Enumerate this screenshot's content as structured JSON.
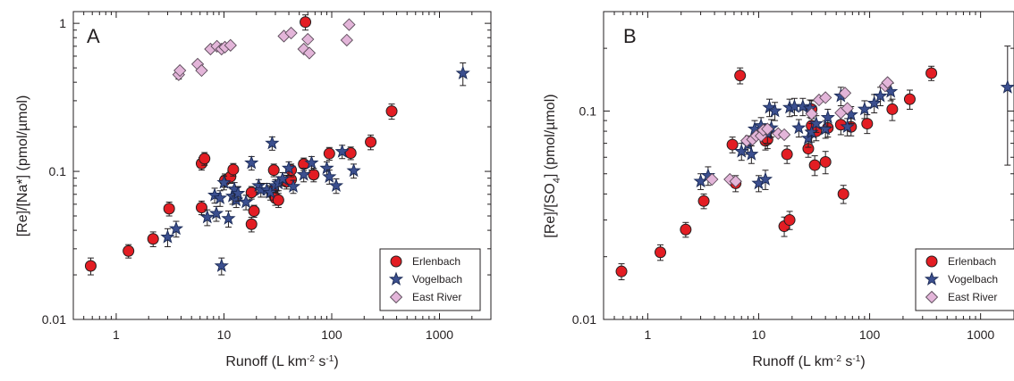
{
  "chart_data": [
    {
      "panel": "A",
      "type": "scatter",
      "xscale": "log",
      "yscale": "log",
      "xlim": [
        0.4,
        3000
      ],
      "ylim": [
        0.01,
        1.2
      ],
      "xlabel_parts": [
        "Runoff (L km",
        "-2",
        " s",
        "-1",
        ")"
      ],
      "ylabel_parts": [
        "[Re]/[Na*]  (pmol/µmol)"
      ],
      "xticks": [
        {
          "v": 1,
          "label": "1"
        },
        {
          "v": 10,
          "label": "10"
        },
        {
          "v": 100,
          "label": "100"
        },
        {
          "v": 1000,
          "label": "1000"
        }
      ],
      "yticks": [
        {
          "v": 0.01,
          "label": "0.01"
        },
        {
          "v": 0.1,
          "label": "0.1"
        },
        {
          "v": 1,
          "label": "1"
        }
      ],
      "legend": {
        "position": "bottom-right",
        "entries": [
          "Erlenbach",
          "Vogelbach",
          "East River"
        ]
      },
      "series": [
        {
          "name": "Erlenbach",
          "marker": "circle",
          "color": "#e31d23",
          "points": [
            [
              0.58,
              0.023
            ],
            [
              1.3,
              0.029
            ],
            [
              2.2,
              0.035
            ],
            [
              3.1,
              0.056
            ],
            [
              6.2,
              0.057
            ],
            [
              6.2,
              0.113
            ],
            [
              6.6,
              0.122
            ],
            [
              10.2,
              0.087
            ],
            [
              11.5,
              0.092
            ],
            [
              12.2,
              0.103
            ],
            [
              18.0,
              0.044
            ],
            [
              18.0,
              0.072
            ],
            [
              19.0,
              0.054
            ],
            [
              28.0,
              0.073
            ],
            [
              29.0,
              0.102
            ],
            [
              30.0,
              0.066
            ],
            [
              32.0,
              0.064
            ],
            [
              38.0,
              0.085
            ],
            [
              42.0,
              0.088
            ],
            [
              42.0,
              0.102
            ],
            [
              55.0,
              0.112
            ],
            [
              57.0,
              1.02
            ],
            [
              68.0,
              0.095
            ],
            [
              95.0,
              0.132
            ],
            [
              150.0,
              0.133
            ],
            [
              230.0,
              0.158
            ],
            [
              360.0,
              0.255
            ]
          ],
          "errors": [
            0.003,
            0.003,
            0.004,
            0.006,
            0.006,
            0.011,
            0.012,
            0.009,
            0.009,
            0.01,
            0.005,
            0.007,
            0.005,
            0.007,
            0.01,
            0.007,
            0.007,
            0.009,
            0.009,
            0.01,
            0.011,
            0.12,
            0.01,
            0.013,
            0.013,
            0.018,
            0.03
          ]
        },
        {
          "name": "Vogelbach",
          "marker": "star",
          "color": "#3b4f8f",
          "points": [
            [
              3.0,
              0.036
            ],
            [
              3.6,
              0.041
            ],
            [
              7.0,
              0.049
            ],
            [
              8.2,
              0.069
            ],
            [
              8.5,
              0.052
            ],
            [
              9.2,
              0.066
            ],
            [
              9.5,
              0.023
            ],
            [
              10.0,
              0.084
            ],
            [
              11.0,
              0.048
            ],
            [
              12.0,
              0.068
            ],
            [
              12.5,
              0.076
            ],
            [
              13.0,
              0.064
            ],
            [
              13.5,
              0.071
            ],
            [
              16.0,
              0.062
            ],
            [
              18.0,
              0.114
            ],
            [
              21.0,
              0.08
            ],
            [
              22.0,
              0.075
            ],
            [
              25.0,
              0.075
            ],
            [
              27.0,
              0.072
            ],
            [
              28.0,
              0.155
            ],
            [
              30.0,
              0.08
            ],
            [
              32.0,
              0.083
            ],
            [
              35.0,
              0.089
            ],
            [
              40.0,
              0.105
            ],
            [
              44.0,
              0.079
            ],
            [
              55.0,
              0.095
            ],
            [
              65.0,
              0.114
            ],
            [
              90.0,
              0.105
            ],
            [
              95.0,
              0.092
            ],
            [
              110.0,
              0.08
            ],
            [
              125.0,
              0.136
            ],
            [
              160.0,
              0.101
            ],
            [
              1650.0,
              0.46
            ]
          ],
          "errors": [
            0.005,
            0.005,
            0.006,
            0.008,
            0.006,
            0.008,
            0.003,
            0.009,
            0.006,
            0.008,
            0.008,
            0.007,
            0.008,
            0.007,
            0.012,
            0.008,
            0.008,
            0.008,
            0.008,
            0.016,
            0.008,
            0.009,
            0.009,
            0.011,
            0.008,
            0.01,
            0.012,
            0.011,
            0.01,
            0.009,
            0.014,
            0.011,
            0.08
          ]
        },
        {
          "name": "East River",
          "marker": "diamond",
          "color": "#e3b5d9",
          "points": [
            [
              3.8,
              0.45
            ],
            [
              3.9,
              0.48
            ],
            [
              5.7,
              0.53
            ],
            [
              6.2,
              0.48
            ],
            [
              7.5,
              0.67
            ],
            [
              8.6,
              0.7
            ],
            [
              9.5,
              0.67
            ],
            [
              10.2,
              0.69
            ],
            [
              11.5,
              0.71
            ],
            [
              36.0,
              0.82
            ],
            [
              42.0,
              0.86
            ],
            [
              55.0,
              0.67
            ],
            [
              60.0,
              0.78
            ],
            [
              62.0,
              0.63
            ],
            [
              138.0,
              0.77
            ],
            [
              145.0,
              0.98
            ]
          ],
          "errors": [
            0.03,
            0,
            0,
            0,
            0,
            0,
            0,
            0,
            0,
            0,
            0,
            0,
            0,
            0,
            0,
            0
          ]
        }
      ]
    },
    {
      "panel": "B",
      "type": "scatter",
      "xscale": "log",
      "yscale": "log",
      "xlim": [
        0.4,
        2000
      ],
      "ylim": [
        0.01,
        0.3
      ],
      "xlabel_parts": [
        "Runoff (L km",
        "-2",
        " s",
        "-1",
        ")"
      ],
      "ylabel_parts": [
        "[Re]/[SO",
        "4",
        "]  (pmol/µmol)"
      ],
      "xticks": [
        {
          "v": 1,
          "label": "1"
        },
        {
          "v": 10,
          "label": "10"
        },
        {
          "v": 100,
          "label": "100"
        },
        {
          "v": 1000,
          "label": "1000"
        }
      ],
      "yticks": [
        {
          "v": 0.01,
          "label": "0.01"
        },
        {
          "v": 0.1,
          "label": "0.1"
        }
      ],
      "legend": {
        "position": "bottom-right",
        "entries": [
          "Erlenbach",
          "Vogelbach",
          "East River"
        ]
      },
      "series": [
        {
          "name": "Erlenbach",
          "marker": "circle",
          "color": "#e31d23",
          "points": [
            [
              0.58,
              0.017
            ],
            [
              1.3,
              0.021
            ],
            [
              2.2,
              0.027
            ],
            [
              3.2,
              0.037
            ],
            [
              5.8,
              0.069
            ],
            [
              6.2,
              0.045
            ],
            [
              6.8,
              0.148
            ],
            [
              11.5,
              0.072
            ],
            [
              12.0,
              0.073
            ],
            [
              17.0,
              0.028
            ],
            [
              18.0,
              0.062
            ],
            [
              19.0,
              0.03
            ],
            [
              28.0,
              0.066
            ],
            [
              30.0,
              0.085
            ],
            [
              30.0,
              0.102
            ],
            [
              32.0,
              0.055
            ],
            [
              33.0,
              0.08
            ],
            [
              40.0,
              0.057
            ],
            [
              42.0,
              0.083
            ],
            [
              55.0,
              0.086
            ],
            [
              58.0,
              0.04
            ],
            [
              68.0,
              0.084
            ],
            [
              95.0,
              0.087
            ],
            [
              160.0,
              0.102
            ],
            [
              230.0,
              0.114
            ],
            [
              360.0,
              0.152
            ]
          ],
          "errors": [
            0.0015,
            0.0018,
            0.0022,
            0.003,
            0.006,
            0.004,
            0.013,
            0.007,
            0.007,
            0.003,
            0.006,
            0.003,
            0.006,
            0.008,
            0.01,
            0.006,
            0.008,
            0.007,
            0.008,
            0.009,
            0.004,
            0.008,
            0.009,
            0.012,
            0.012,
            0.012
          ]
        },
        {
          "name": "Vogelbach",
          "marker": "star",
          "color": "#3b4f8f",
          "points": [
            [
              3.0,
              0.046
            ],
            [
              3.5,
              0.049
            ],
            [
              7.0,
              0.064
            ],
            [
              8.0,
              0.069
            ],
            [
              8.6,
              0.062
            ],
            [
              9.2,
              0.082
            ],
            [
              10.0,
              0.045
            ],
            [
              10.5,
              0.085
            ],
            [
              11.5,
              0.047
            ],
            [
              12.0,
              0.078
            ],
            [
              12.5,
              0.104
            ],
            [
              13.0,
              0.083
            ],
            [
              14.0,
              0.1
            ],
            [
              19.0,
              0.104
            ],
            [
              21.0,
              0.105
            ],
            [
              23.0,
              0.083
            ],
            [
              25.0,
              0.105
            ],
            [
              28.0,
              0.074
            ],
            [
              29.0,
              0.103
            ],
            [
              30.0,
              0.079
            ],
            [
              33.0,
              0.087
            ],
            [
              40.0,
              0.082
            ],
            [
              42.0,
              0.093
            ],
            [
              55.0,
              0.118
            ],
            [
              63.0,
              0.084
            ],
            [
              68.0,
              0.096
            ],
            [
              90.0,
              0.102
            ],
            [
              110.0,
              0.109
            ],
            [
              125.0,
              0.118
            ],
            [
              155.0,
              0.124
            ],
            [
              1750.0,
              0.13
            ]
          ],
          "errors": [
            0.004,
            0.005,
            0.006,
            0.007,
            0.006,
            0.008,
            0.004,
            0.008,
            0.005,
            0.008,
            0.01,
            0.008,
            0.01,
            0.01,
            0.01,
            0.008,
            0.01,
            0.007,
            0.01,
            0.008,
            0.008,
            0.008,
            0.009,
            0.012,
            0.008,
            0.009,
            0.01,
            0.011,
            0.012,
            0.012,
            0.075
          ]
        },
        {
          "name": "East River",
          "marker": "diamond",
          "color": "#e3b5d9",
          "points": [
            [
              3.8,
              0.047
            ],
            [
              5.5,
              0.047
            ],
            [
              6.2,
              0.046
            ],
            [
              7.8,
              0.072
            ],
            [
              8.8,
              0.073
            ],
            [
              9.5,
              0.076
            ],
            [
              10.5,
              0.076
            ],
            [
              11.0,
              0.081
            ],
            [
              12.0,
              0.082
            ],
            [
              15.0,
              0.078
            ],
            [
              17.0,
              0.077
            ],
            [
              30.0,
              0.097
            ],
            [
              35.0,
              0.113
            ],
            [
              40.0,
              0.116
            ],
            [
              55.0,
              0.098
            ],
            [
              60.0,
              0.122
            ],
            [
              63.0,
              0.103
            ],
            [
              138.0,
              0.132
            ],
            [
              145.0,
              0.137
            ]
          ],
          "errors": [
            0,
            0,
            0,
            0,
            0,
            0,
            0,
            0,
            0,
            0,
            0,
            0,
            0,
            0,
            0,
            0,
            0,
            0,
            0
          ]
        }
      ]
    }
  ]
}
